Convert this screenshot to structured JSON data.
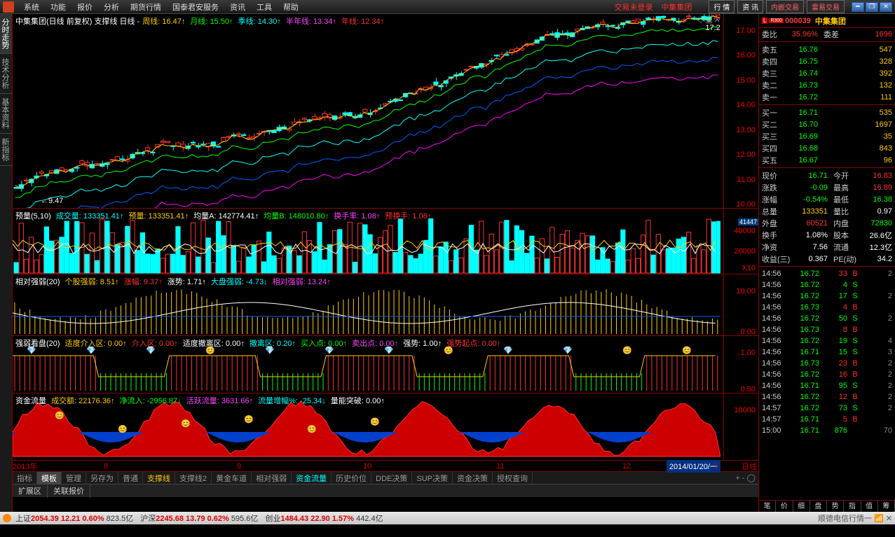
{
  "menu": {
    "items": [
      "系统",
      "功能",
      "报价",
      "分析",
      "期货行情",
      "国泰君安服务",
      "资讯",
      "工具",
      "帮助"
    ],
    "login_status": "交易未登录",
    "stock": "中集集团",
    "right_buttons": [
      "行 情",
      "资 讯",
      "内嵌交易",
      "雷易交易"
    ]
  },
  "left_tabs": [
    "分时走势",
    "技术分析",
    "基本资料",
    "新指标"
  ],
  "stock_header": {
    "code": "000039",
    "name": "中集集团",
    "badge1": "L",
    "badge2": "R300"
  },
  "quote": {
    "委比": "35.96%",
    "委差": "1696",
    "asks": [
      [
        "卖五",
        "16.76",
        "547"
      ],
      [
        "卖四",
        "16.75",
        "328"
      ],
      [
        "卖三",
        "16.74",
        "392"
      ],
      [
        "卖二",
        "16.73",
        "132"
      ],
      [
        "卖一",
        "16.72",
        "111"
      ]
    ],
    "bids": [
      [
        "买一",
        "16.71",
        "535"
      ],
      [
        "买二",
        "16.70",
        "1697"
      ],
      [
        "买三",
        "16.69",
        "35"
      ],
      [
        "买四",
        "16.68",
        "843"
      ],
      [
        "买五",
        "16.67",
        "96"
      ]
    ],
    "现价": "16.71",
    "今开": "16.83",
    "涨跌": "-0.09",
    "最高": "16.89",
    "涨幅": "-0.54%",
    "最低": "16.38",
    "总量": "133351",
    "量比": "0.97",
    "外盘": "60521",
    "内盘": "72830",
    "换手": "1.08%",
    "股本": "26.6亿",
    "净资": "7.56",
    "流通": "12.3亿",
    "收益(三)": "0.367",
    "PE(动)": "34.2"
  },
  "ticks": [
    [
      "14:56",
      "16.72",
      "33",
      "B",
      "2"
    ],
    [
      "14:56",
      "16.72",
      "4",
      "S",
      ""
    ],
    [
      "14:56",
      "16.72",
      "17",
      "S",
      "2"
    ],
    [
      "14:56",
      "16.73",
      "4",
      "B",
      ""
    ],
    [
      "14:56",
      "16.72",
      "50",
      "S",
      "2"
    ],
    [
      "14:56",
      "16.73",
      "8",
      "B",
      ""
    ],
    [
      "14:56",
      "16.72",
      "19",
      "S",
      "4"
    ],
    [
      "14:56",
      "16.71",
      "15",
      "S",
      "3"
    ],
    [
      "14:56",
      "16.73",
      "23",
      "B",
      "2"
    ],
    [
      "14:56",
      "16.72",
      "16",
      "B",
      "2"
    ],
    [
      "14:56",
      "16.71",
      "95",
      "S",
      "2"
    ],
    [
      "14:56",
      "16.72",
      "12",
      "B",
      "2"
    ],
    [
      "14:57",
      "16.72",
      "73",
      "S",
      "2"
    ],
    [
      "14:57",
      "16.71",
      "5",
      "B",
      ""
    ],
    [
      "15:00",
      "16.71",
      "876",
      "",
      "70"
    ]
  ],
  "main_chart": {
    "title": "中集集团(日线 前复权) 支撑线 日线 -",
    "ma": [
      [
        "周线:",
        "16.47",
        "yellow"
      ],
      [
        "月线:",
        "15.50",
        "green"
      ],
      [
        "季线:",
        "14.30",
        "cyan"
      ],
      [
        "半年线:",
        "13.34",
        "magenta"
      ],
      [
        "年线:",
        "12.34",
        "red"
      ]
    ],
    "ylabels": [
      "17.00",
      "16.00",
      "15.00",
      "14.00",
      "13.00",
      "12.00",
      "11.00",
      "10.00"
    ],
    "peak": "17.20",
    "low": "9.47",
    "ma_colors": {
      "周": "#ffcc00",
      "月": "#00ff00",
      "季": "#00ffff",
      "半": "#0060ff",
      "年": "#ff00ff"
    }
  },
  "vol": {
    "header": [
      [
        "预量(5,10)",
        ""
      ],
      [
        "成交量:",
        "133351.41",
        "cyan"
      ],
      [
        "预量:",
        "133351.41",
        "yellow"
      ],
      [
        "均量A:",
        "142774.41",
        "white"
      ],
      [
        "均量B:",
        "148010.80",
        "green"
      ],
      [
        "换手率:",
        "1.08",
        "magenta"
      ],
      [
        "预换手:",
        "1.08",
        "red"
      ]
    ],
    "ylabels": [
      "41447",
      "40000",
      "20000"
    ],
    "x10": "X10"
  },
  "rsi": {
    "header": [
      [
        "相对强弱(20)",
        ""
      ],
      [
        "个股强弱:",
        "8.51",
        "yellow"
      ],
      [
        "涨幅:",
        "9.37",
        "red"
      ],
      [
        "涨势:",
        "1.71",
        "white"
      ],
      [
        "大盘强弱:",
        "-4.73",
        "cyan"
      ],
      [
        "相对强弱:",
        "13.24",
        "magenta"
      ]
    ],
    "ylabels": [
      "10.00",
      "0.00"
    ]
  },
  "kanpan": {
    "header": [
      [
        "强弱看盘(20)",
        ""
      ],
      [
        "适度介入区:",
        "0.00",
        "yellow"
      ],
      [
        "介入区:",
        "0.00",
        "red"
      ],
      [
        "适度撤离区:",
        "0.00",
        "white"
      ],
      [
        "撤离区:",
        "0.20",
        "cyan"
      ],
      [
        "买入点:",
        "0.00",
        "green"
      ],
      [
        "卖出点:",
        "0.00",
        "magenta"
      ],
      [
        "强势:",
        "1.00",
        "white"
      ],
      [
        "强势起点:",
        "0.00",
        "red"
      ]
    ],
    "ylabels": [
      "1.00",
      "0.50"
    ]
  },
  "flow": {
    "header": [
      [
        "资金流量",
        ""
      ],
      [
        "成交额:",
        "22176.36",
        "yellow"
      ],
      [
        "净流入:",
        "-2956.87",
        "green"
      ],
      [
        "活跃流量:",
        "3631.66",
        "magenta"
      ],
      [
        "流量增幅%:",
        "-25.34",
        "cyan"
      ],
      [
        "量能突破:",
        "0.00",
        "white"
      ]
    ],
    "ylabels": [
      "10000"
    ]
  },
  "timeaxis": {
    "labels": [
      [
        "2013年",
        0
      ],
      [
        "8",
        130
      ],
      [
        "9",
        320
      ],
      [
        "10",
        500
      ],
      [
        "11",
        690
      ],
      [
        "12",
        870
      ],
      [
        "1",
        1000
      ]
    ],
    "date": "2014/01/20/一",
    "mode": "日线"
  },
  "bottom_tabs": [
    "指标",
    "模板",
    "管理",
    "另存为",
    "普通",
    "支撑线",
    "支撑线2",
    "黄金车道",
    "相对强弱",
    "资金流量",
    "历史价位",
    "DDE决策",
    "SUP决策",
    "资金决策",
    "授权查询"
  ],
  "bottom_active": 1,
  "bottom_yellow": [
    5
  ],
  "bottom_cyan": [
    9
  ],
  "ext_tabs": [
    "扩展区",
    "关联报价"
  ],
  "rp_bottom": [
    "笔",
    "价",
    "细",
    "盘",
    "势",
    "指",
    "值",
    "筹"
  ],
  "status": {
    "items": [
      [
        "上证",
        "2054.39",
        "12.21",
        "0.60%",
        "823.5亿"
      ],
      [
        "沪深",
        "2245.68",
        "13.79",
        "0.62%",
        "595.6亿"
      ],
      [
        "创业",
        "1484.43",
        "22.90",
        "1.57%",
        "442.4亿"
      ]
    ],
    "network": "顺德电信行情一"
  }
}
